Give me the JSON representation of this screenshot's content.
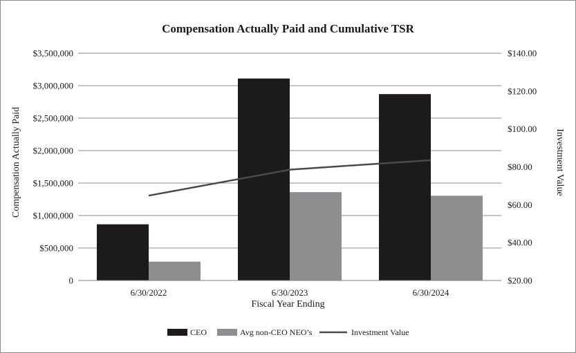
{
  "chart_data": {
    "type": "bar",
    "title": "Compensation Actually Paid and Cumulative TSR",
    "xlabel": "Fiscal Year Ending",
    "ylabel": "Compensation Actually Paid",
    "y2label": "Investment Value",
    "categories": [
      "6/30/2022",
      "6/30/2023",
      "6/30/2024"
    ],
    "ylim": [
      0,
      3500000
    ],
    "y2lim": [
      20,
      140
    ],
    "yticks": [
      0,
      500000,
      1000000,
      1500000,
      2000000,
      2500000,
      3000000,
      3500000
    ],
    "ytick_labels": [
      "0",
      "$500,000",
      "$1,000,000",
      "$1,500,000",
      "$2,000,000",
      "$2,500,000",
      "$3,000,000",
      "$3,500,000"
    ],
    "y2ticks": [
      20,
      40,
      60,
      80,
      100,
      120,
      140
    ],
    "y2tick_labels": [
      "$20.00",
      "$40.00",
      "$60.00",
      "$80.00",
      "$100.00",
      "$120.00",
      "$140.00"
    ],
    "grid": true,
    "legend_position": "bottom",
    "series": [
      {
        "name": "CEO",
        "kind": "bar",
        "axis": "left",
        "color": "#1c1a1b",
        "values": [
          865000,
          3110000,
          2870000
        ]
      },
      {
        "name": "Avg non-CEO NEO’s",
        "kind": "bar",
        "axis": "left",
        "color": "#8e8e90",
        "values": [
          290000,
          1360000,
          1305000
        ]
      },
      {
        "name": "Investment Value",
        "kind": "line",
        "axis": "right",
        "color": "#4a4a4a",
        "values": [
          64.8,
          78.5,
          83.5
        ]
      }
    ]
  }
}
